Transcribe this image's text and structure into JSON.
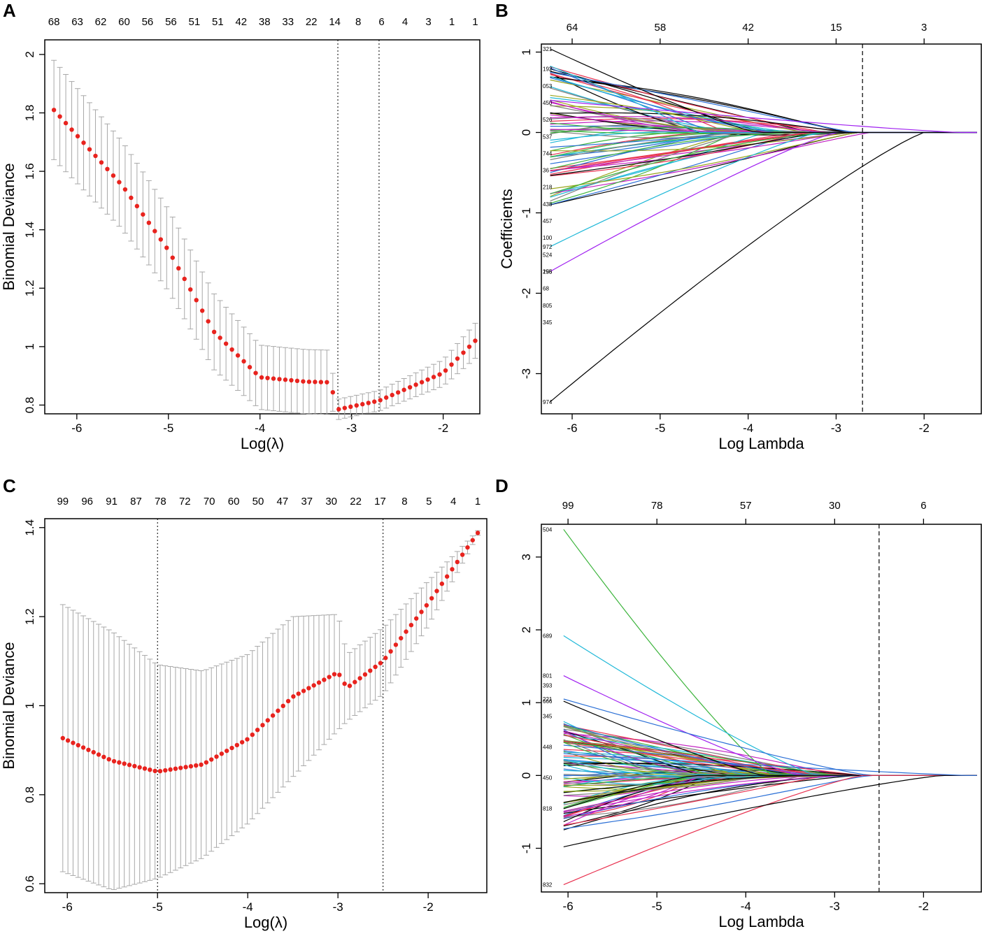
{
  "figure": {
    "description_labels": [
      "A",
      "B",
      "C",
      "D"
    ]
  },
  "chart_data": [
    {
      "panel": "A",
      "type": "scatter",
      "subtype": "cv-deviance-with-error-bars",
      "xlabel": "Log(λ)",
      "ylabel": "Binomial Deviance",
      "xlim": [
        -6.35,
        -1.6
      ],
      "ylim": [
        0.77,
        2.05
      ],
      "xticks": [
        -6,
        -5,
        -4,
        -3,
        -2
      ],
      "yticks": [
        0.8,
        1.0,
        1.2,
        1.4,
        1.6,
        1.8,
        2.0
      ],
      "top_axis_labels": [
        "68",
        "63",
        "62",
        "60",
        "56",
        "56",
        "51",
        "51",
        "42",
        "38",
        "33",
        "22",
        "14",
        "8",
        "6",
        "4",
        "3",
        "1",
        "1"
      ],
      "vlines": [
        -3.15,
        -2.7
      ],
      "n_points": 72,
      "x_start": -6.25,
      "x_end": -1.65,
      "curve_key_points": [
        {
          "x": -6.25,
          "y": 1.81,
          "sd": 0.17
        },
        {
          "x": -5.5,
          "y": 1.55,
          "sd": 0.15
        },
        {
          "x": -5.0,
          "y": 1.33,
          "sd": 0.14
        },
        {
          "x": -4.5,
          "y": 1.05,
          "sd": 0.13
        },
        {
          "x": -4.0,
          "y": 0.895,
          "sd": 0.11
        },
        {
          "x": -3.5,
          "y": 0.88,
          "sd": 0.11
        },
        {
          "x": -3.25,
          "y": 0.878,
          "sd": 0.11
        },
        {
          "x": -3.2,
          "y": 0.84,
          "sd": 0.06
        },
        {
          "x": -3.15,
          "y": 0.785,
          "sd": 0.035
        },
        {
          "x": -2.7,
          "y": 0.815,
          "sd": 0.035
        },
        {
          "x": -2.0,
          "y": 0.91,
          "sd": 0.045
        },
        {
          "x": -1.65,
          "y": 1.02,
          "sd": 0.06
        }
      ]
    },
    {
      "panel": "B",
      "type": "line",
      "subtype": "coefficient-paths",
      "xlabel": "Log Lambda",
      "ylabel": "Coefficients",
      "xlim": [
        -6.35,
        -1.35
      ],
      "ylim": [
        -3.5,
        1.1
      ],
      "xticks": [
        -6,
        -5,
        -4,
        -3,
        -2
      ],
      "yticks": [
        -3,
        -2,
        -1,
        0,
        1
      ],
      "top_axis_labels": [
        "64",
        "58",
        "42",
        "15",
        "3"
      ],
      "top_axis_positions": [
        -6,
        -5,
        -4,
        -3,
        -2
      ],
      "vline": -2.7,
      "x_start": -6.25,
      "variable_labels": [
        "321",
        "192",
        "053",
        "450",
        "526",
        "537",
        "744",
        "36",
        "218",
        "438",
        "457",
        "100",
        "524",
        "156",
        "68",
        "805",
        "345",
        "972",
        "295",
        "974"
      ],
      "highlight_paths": [
        {
          "name": "974",
          "start": -3.35,
          "end": -2.0,
          "color": "#000000"
        },
        {
          "name": "295",
          "start": -1.73,
          "end": -3.0,
          "color": "#a020f0"
        },
        {
          "name": "972",
          "start": -1.42,
          "end": -3.2,
          "color": "#1fb8d8"
        },
        {
          "name": "321",
          "start": 1.04,
          "end": -3.9,
          "color": "#000000"
        },
        {
          "name": "mid-pos",
          "start": 0.4,
          "end": -1.6,
          "color": "#a020f0"
        }
      ],
      "palette": [
        "#000000",
        "#e8314f",
        "#3cb43c",
        "#2a6fd6",
        "#1fb8d8",
        "#c21fc2",
        "#9aa51c",
        "#808080"
      ]
    },
    {
      "panel": "C",
      "type": "scatter",
      "subtype": "cv-deviance-with-error-bars",
      "xlabel": "Log(λ)",
      "ylabel": "Binomial Deviance",
      "xlim": [
        -6.25,
        -1.35
      ],
      "ylim": [
        0.58,
        1.42
      ],
      "xticks": [
        -6,
        -5,
        -4,
        -3,
        -2
      ],
      "yticks": [
        0.6,
        0.8,
        1.0,
        1.2,
        1.4
      ],
      "top_axis_labels": [
        "99",
        "96",
        "91",
        "87",
        "78",
        "72",
        "70",
        "60",
        "50",
        "47",
        "37",
        "30",
        "22",
        "17",
        "8",
        "5",
        "4",
        "1"
      ],
      "vlines": [
        -5.0,
        -2.5
      ],
      "n_points": 82,
      "x_start": -6.05,
      "x_end": -1.45,
      "curve_key_points": [
        {
          "x": -6.05,
          "y": 0.927,
          "sd": 0.3
        },
        {
          "x": -5.5,
          "y": 0.876,
          "sd": 0.29
        },
        {
          "x": -5.0,
          "y": 0.852,
          "sd": 0.24
        },
        {
          "x": -4.5,
          "y": 0.868,
          "sd": 0.21
        },
        {
          "x": -4.0,
          "y": 0.925,
          "sd": 0.19
        },
        {
          "x": -3.5,
          "y": 1.02,
          "sd": 0.18
        },
        {
          "x": -3.0,
          "y": 1.075,
          "sd": 0.13
        },
        {
          "x": -2.9,
          "y": 1.04,
          "sd": 0.075
        },
        {
          "x": -2.5,
          "y": 1.1,
          "sd": 0.075
        },
        {
          "x": -2.0,
          "y": 1.23,
          "sd": 0.05
        },
        {
          "x": -1.45,
          "y": 1.388,
          "sd": 0.005
        }
      ]
    },
    {
      "panel": "D",
      "type": "line",
      "subtype": "coefficient-paths",
      "xlabel": "Log Lambda",
      "ylabel": "",
      "xlim": [
        -6.3,
        -1.35
      ],
      "ylim": [
        -1.6,
        3.45
      ],
      "xticks": [
        -6,
        -5,
        -4,
        -3,
        -2
      ],
      "yticks": [
        -1,
        0,
        1,
        2,
        3
      ],
      "top_axis_labels": [
        "99",
        "78",
        "57",
        "30",
        "6"
      ],
      "top_axis_positions": [
        -6,
        -5,
        -4,
        -3,
        -2
      ],
      "vline": -2.5,
      "x_start": -6.05,
      "variable_labels": [
        "504",
        "689",
        "801",
        "221",
        "666",
        "393",
        "345",
        "448",
        "450",
        "818",
        "832"
      ],
      "highlight_paths": [
        {
          "name": "504",
          "start": 3.38,
          "end": -3.7,
          "color": "#3cb43c"
        },
        {
          "name": "689",
          "start": 1.92,
          "end": -3.2,
          "color": "#1fb8d8"
        },
        {
          "name": "801",
          "start": 1.37,
          "end": -3.4,
          "color": "#a020f0"
        },
        {
          "name": "221",
          "start": 1.05,
          "end": -2.6,
          "color": "#2a6fd6"
        },
        {
          "name": "666",
          "start": 1.02,
          "end": -3.8,
          "color": "#000000"
        },
        {
          "name": "832",
          "start": -1.5,
          "end": -2.7,
          "color": "#e8314f"
        },
        {
          "name": "neg-black",
          "start": -0.98,
          "end": -1.8,
          "color": "#000000"
        },
        {
          "name": "blue-late",
          "start": 0.3,
          "end": -1.5,
          "color": "#2a6fd6"
        }
      ],
      "palette": [
        "#000000",
        "#e8314f",
        "#3cb43c",
        "#2a6fd6",
        "#1fb8d8",
        "#c21fc2",
        "#9aa51c",
        "#808080"
      ]
    }
  ]
}
